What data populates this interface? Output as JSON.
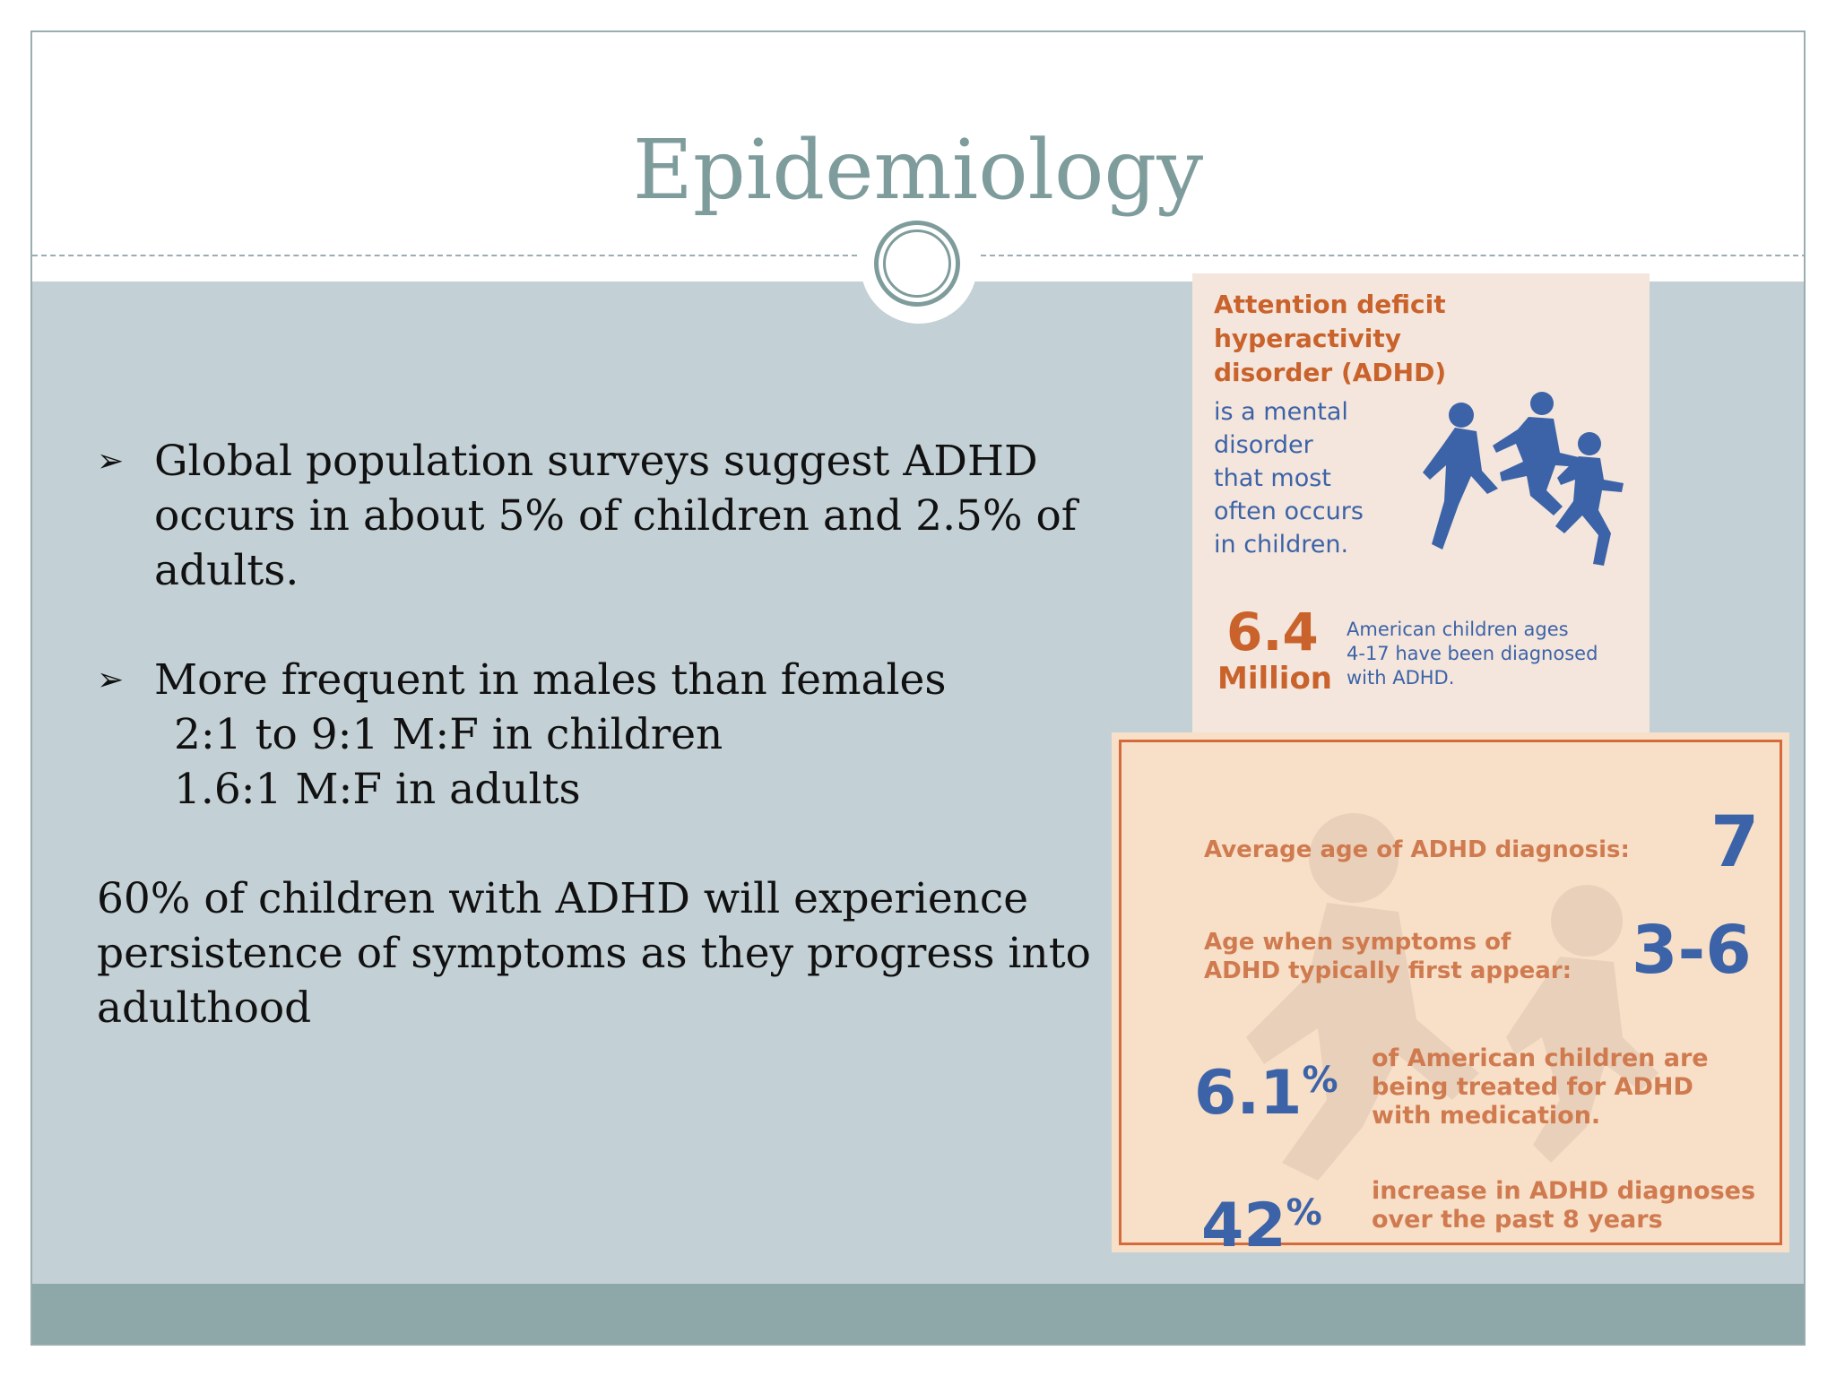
{
  "slide": {
    "title": "Epidemiology",
    "bullets": [
      {
        "text_lines": [
          "Global population surveys suggest ADHD",
          "occurs in about 5% of children and 2.5% of",
          "adults."
        ]
      },
      {
        "text_lines": [
          "More frequent in males than females"
        ],
        "sub_lines": [
          "2:1 to 9:1 M:F in children",
          "1.6:1 M:F in adults"
        ]
      }
    ],
    "paragraph_lines": [
      "60% of children with ADHD will experience",
      "persistence of symptoms as they progress into",
      "adulthood"
    ],
    "bullet_glyph": "➢"
  },
  "infographic": {
    "heading_lines": [
      "Attention deficit hyperactivity",
      "disorder (ADHD)"
    ],
    "description_lines": [
      "is a mental",
      "disorder",
      "that most",
      "often occurs",
      "in children."
    ],
    "stat_value": "6.4",
    "stat_unit": "Million",
    "stat_desc_lines": [
      "American children ages",
      "4-17 have been diagnosed",
      "with ADHD."
    ],
    "facts": [
      {
        "label_lines": [
          "Average age of ADHD diagnosis:"
        ],
        "value": "7"
      },
      {
        "label_lines": [
          "Age when symptoms of",
          "ADHD typically first appear:"
        ],
        "value": "3-6"
      },
      {
        "value": "6.1",
        "suffix": "%",
        "desc_lines": [
          "of American children are",
          "being treated for ADHD",
          "with medication."
        ]
      },
      {
        "value": "42",
        "suffix": "%",
        "desc_lines": [
          "increase in ADHD diagnoses",
          "over the past 8 years"
        ]
      }
    ],
    "colors": {
      "orange": "#c9622b",
      "blue": "#3c63a8",
      "light_orange": "#d07a4f"
    },
    "icon": "running-children-icon"
  }
}
